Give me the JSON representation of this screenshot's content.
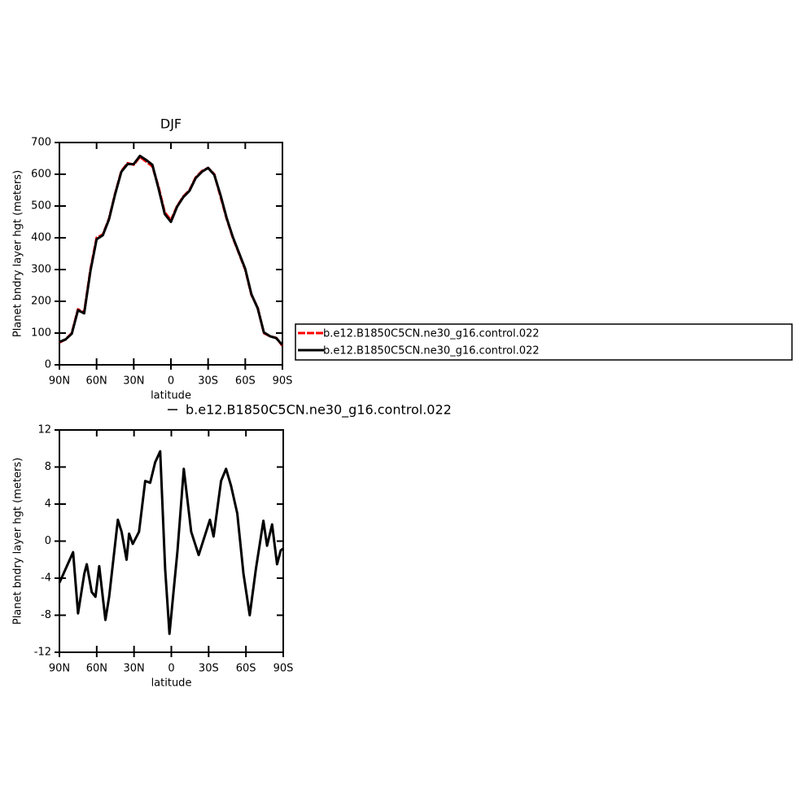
{
  "chart_data": [
    {
      "type": "line",
      "title": "DJF",
      "xlabel": "latitude",
      "ylabel": "Planet bndry layer hgt (meters)",
      "x": [
        90,
        85,
        80,
        75,
        70,
        65,
        60,
        55,
        50,
        45,
        40,
        35,
        30,
        25,
        20,
        15,
        10,
        5,
        0,
        -5,
        -10,
        -15,
        -20,
        -25,
        -30,
        -35,
        -40,
        -45,
        -50,
        -55,
        -60,
        -65,
        -70,
        -75,
        -80,
        -85,
        -90
      ],
      "series": [
        {
          "name": "b.e12.B1850C5CN.ne30_g16.control.022",
          "color": "#ff0000",
          "dash": true,
          "values": [
            70,
            80,
            100,
            175,
            165,
            300,
            400,
            410,
            460,
            540,
            610,
            635,
            630,
            655,
            640,
            625,
            560,
            480,
            455,
            500,
            530,
            550,
            590,
            610,
            620,
            600,
            530,
            460,
            400,
            350,
            300,
            220,
            180,
            100,
            90,
            85,
            60
          ]
        },
        {
          "name": "b.e12.B1850C5CN.ne30_g16.control.022",
          "color": "#000000",
          "dash": false,
          "values": [
            72,
            80,
            98,
            172,
            162,
            295,
            395,
            408,
            458,
            538,
            608,
            632,
            632,
            658,
            645,
            630,
            555,
            475,
            450,
            498,
            528,
            548,
            588,
            608,
            620,
            598,
            535,
            462,
            402,
            352,
            302,
            222,
            178,
            102,
            90,
            84,
            62
          ]
        }
      ],
      "xlim": [
        90,
        -90
      ],
      "xticks": [
        {
          "value": 90,
          "label": "90N"
        },
        {
          "value": 60,
          "label": "60N"
        },
        {
          "value": 30,
          "label": "30N"
        },
        0,
        {
          "value": -30,
          "label": "30S"
        },
        {
          "value": -60,
          "label": "60S"
        },
        {
          "value": -90,
          "label": "90S"
        }
      ],
      "ylim": [
        0,
        700
      ],
      "yticks": [
        0,
        100,
        200,
        300,
        400,
        500,
        600,
        700
      ],
      "legend": "right"
    },
    {
      "type": "line",
      "xlabel": "latitude",
      "ylabel": "Planet bndry layer hgt (meters)",
      "x": [
        90,
        79,
        75,
        70,
        68,
        64,
        61,
        58,
        53,
        50,
        43,
        40,
        36,
        34,
        31,
        26,
        21,
        17,
        13,
        9,
        5,
        1.5,
        -5,
        -10,
        -16,
        -22,
        -31,
        -34,
        -40,
        -44,
        -48,
        -53,
        -58,
        -63,
        -68,
        -74,
        -77,
        -81,
        -85,
        -88,
        -90
      ],
      "series": [
        {
          "name": "b.e12.B1850C5CN.ne30_g16.control.022",
          "color": "#000000",
          "values": [
            -4.5,
            -1.2,
            -7.8,
            -3.5,
            -2.5,
            -5.5,
            -6,
            -2.7,
            -8.5,
            -6,
            2.3,
            1,
            -2,
            0.8,
            -0.3,
            1,
            6.5,
            6.3,
            8.5,
            9.7,
            -3,
            -10,
            -1,
            7.8,
            1,
            -1.5,
            2.3,
            0.5,
            6.5,
            7.8,
            6,
            3,
            -3.5,
            -8,
            -3,
            2.2,
            -0.5,
            1.8,
            -2.5,
            -1,
            -0.8
          ]
        }
      ],
      "xlim": [
        90,
        -90
      ],
      "xticks": [
        {
          "value": 90,
          "label": "90N"
        },
        {
          "value": 60,
          "label": "60N"
        },
        {
          "value": 30,
          "label": "30N"
        },
        0,
        {
          "value": -30,
          "label": "30S"
        },
        {
          "value": -60,
          "label": "60S"
        },
        {
          "value": -90,
          "label": "90S"
        }
      ],
      "ylim": [
        -12,
        12
      ],
      "yticks": [
        -12,
        -8,
        -4,
        0,
        4,
        8,
        12
      ],
      "legend": "top"
    }
  ]
}
